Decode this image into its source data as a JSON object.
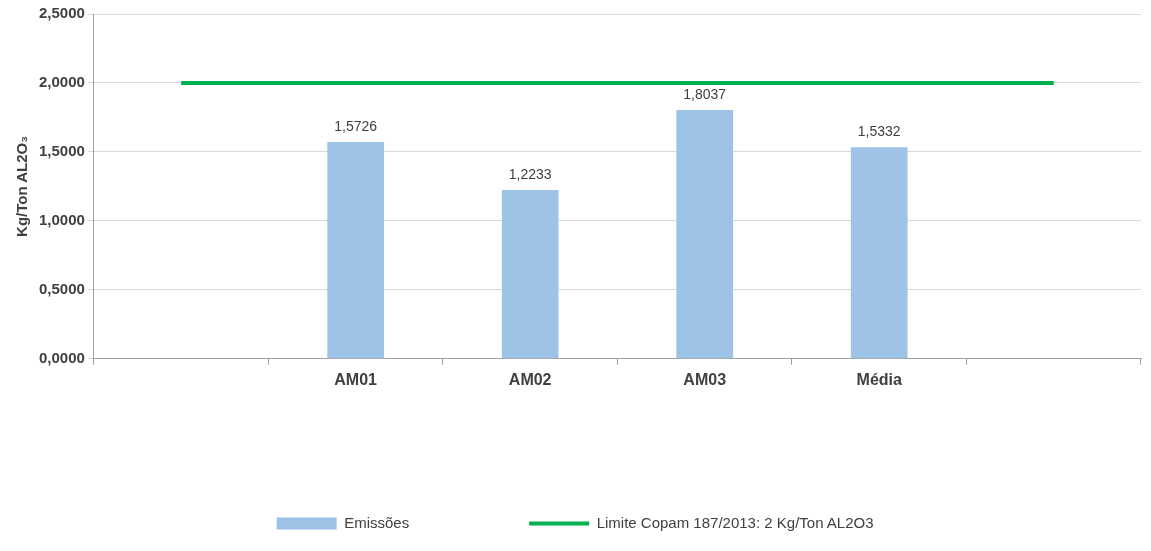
{
  "chart_data": {
    "type": "bar",
    "ylabel": "Kg/Ton AL2O₃",
    "categories": [
      null,
      "AM01",
      "AM02",
      "AM03",
      "Média",
      null
    ],
    "series": [
      {
        "name": "Emissões",
        "color": "#9dc3e6",
        "values": [
          null,
          1.5726,
          1.2233,
          1.8037,
          1.5332,
          null
        ],
        "value_labels": [
          null,
          "1,5726",
          "1,2233",
          "1,8037",
          "1,5332",
          null
        ]
      },
      {
        "name": "Limite Copam 187/2013: 2 Kg/Ton AL2O3",
        "type": "line",
        "color": "#00b050",
        "values": [
          2,
          2,
          2,
          2,
          2,
          2
        ]
      }
    ],
    "ylim": [
      0,
      2.5
    ],
    "yticks": [
      {
        "value": 0,
        "label": "0,0000"
      },
      {
        "value": 0.5,
        "label": "0,5000"
      },
      {
        "value": 1,
        "label": "1,0000"
      },
      {
        "value": 1.5,
        "label": "1,5000"
      },
      {
        "value": 2,
        "label": "2,0000"
      },
      {
        "value": 2.5,
        "label": "2,5000"
      }
    ],
    "grid": "y",
    "legend": "bottom"
  }
}
